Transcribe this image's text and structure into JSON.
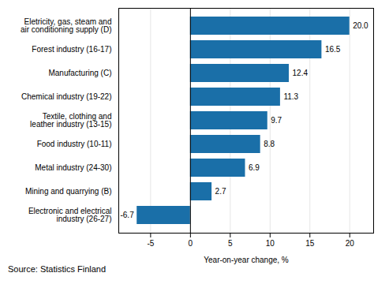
{
  "chart_data": {
    "type": "bar",
    "orientation": "horizontal",
    "categories": [
      "Eletricity, gas, steam and\nair conditioning supply (D)",
      "Forest industry (16-17)",
      "Manufacturing (C)",
      "Chemical industry (19-22)",
      "Textile, clothing and\nleather industry (13-15)",
      "Food industry (10-11)",
      "Metal industry (24-30)",
      "Mining and quarrying (B)",
      "Electronic and electrical\nindustry (26-27)"
    ],
    "values": [
      20.0,
      16.5,
      12.4,
      11.3,
      9.7,
      8.8,
      6.9,
      2.7,
      -6.7
    ],
    "value_labels": [
      "20.0",
      "16.5",
      "12.4",
      "11.3",
      "9.7",
      "8.8",
      "6.9",
      "2.7",
      "-6.7"
    ],
    "data_labels": true,
    "color": "#1a6fa8",
    "xlabel": "Year-on-year change, %",
    "xlim": [
      -9,
      23
    ],
    "xticks": [
      -5,
      0,
      5,
      10,
      15,
      20
    ],
    "grid": true,
    "caption": "Source: Statistics Finland"
  }
}
